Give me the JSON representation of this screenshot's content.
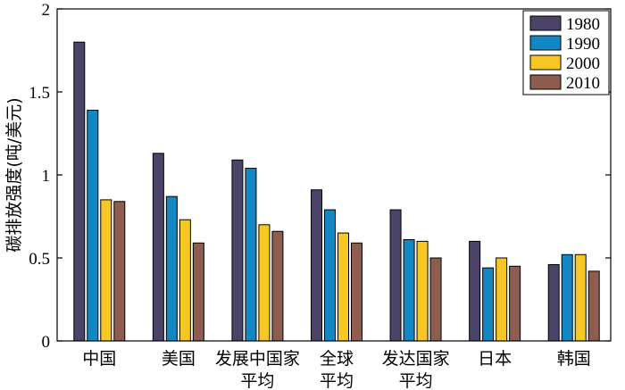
{
  "chart_data": {
    "type": "bar",
    "title": "",
    "xlabel": "",
    "ylabel": "碳排放强度(吨/美元)",
    "ylim": [
      0,
      2
    ],
    "yticks": [
      "0",
      "0.5",
      "1",
      "1.5",
      "2"
    ],
    "ytick_values": [
      0,
      0.5,
      1,
      1.5,
      2
    ],
    "grid": false,
    "legend_position": "top-right",
    "categories": [
      [
        "中国"
      ],
      [
        "美国"
      ],
      [
        "发展中国家",
        "平均"
      ],
      [
        "全球",
        "平均"
      ],
      [
        "发达国家",
        "平均"
      ],
      [
        "日本"
      ],
      [
        "韩国"
      ]
    ],
    "series": [
      {
        "name": "1980",
        "color": "#4b4468",
        "values": [
          1.8,
          1.13,
          1.09,
          0.91,
          0.79,
          0.6,
          0.46
        ]
      },
      {
        "name": "1990",
        "color": "#1287c4",
        "values": [
          1.39,
          0.87,
          1.04,
          0.79,
          0.61,
          0.44,
          0.52
        ]
      },
      {
        "name": "2000",
        "color": "#f7c723",
        "values": [
          0.85,
          0.73,
          0.7,
          0.65,
          0.6,
          0.5,
          0.52
        ]
      },
      {
        "name": "2010",
        "color": "#8d5d4f",
        "values": [
          0.84,
          0.59,
          0.66,
          0.59,
          0.5,
          0.45,
          0.42
        ]
      }
    ]
  }
}
